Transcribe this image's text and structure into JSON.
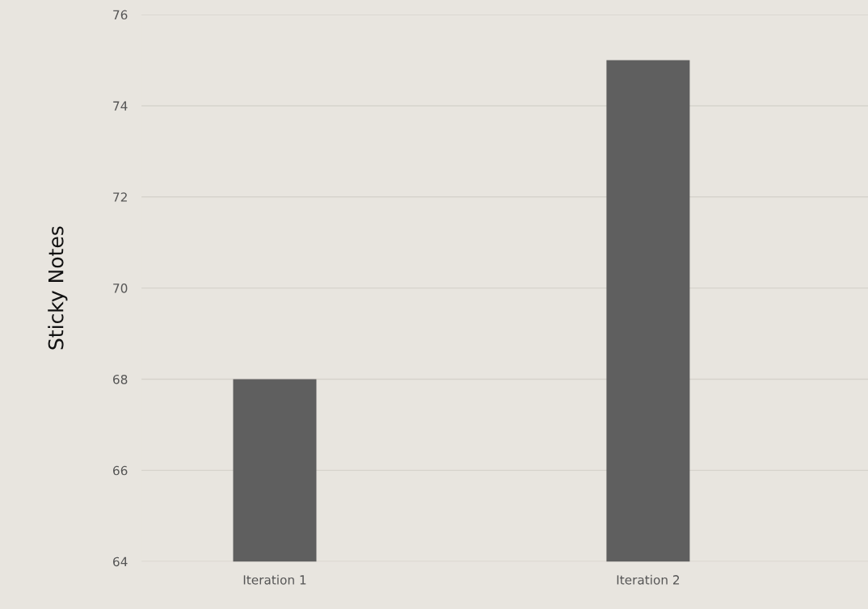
{
  "chart_data": {
    "type": "bar",
    "ylabel": "Sticky Notes",
    "categories": [
      "Iteration 1",
      "Iteration 2"
    ],
    "values": [
      68,
      75
    ],
    "color": "#5f5f5f",
    "ylim": [
      64,
      76
    ],
    "yticks": [
      64,
      66,
      68,
      70,
      72,
      74,
      76
    ],
    "grid": "y",
    "legend": false
  }
}
